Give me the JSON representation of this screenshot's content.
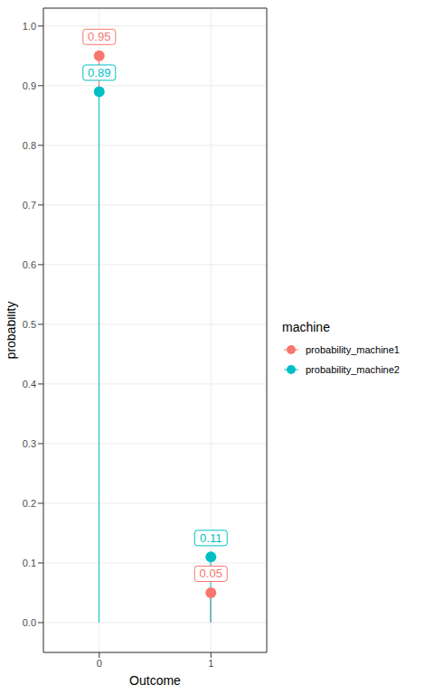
{
  "chart_data": {
    "type": "lollipop",
    "x_label": "Outcome",
    "y_label": "probability",
    "legend_title": "machine",
    "categories": [
      "0",
      "1"
    ],
    "series": [
      {
        "name": "probability_machine1",
        "color": "#f8766d",
        "values": [
          0.95,
          0.05
        ]
      },
      {
        "name": "probability_machine2",
        "color": "#00bfc4",
        "values": [
          0.89,
          0.11
        ]
      }
    ],
    "ylim": [
      -0.05,
      1.03
    ],
    "yticks": [
      {
        "value": 0,
        "label": "0.0"
      },
      {
        "value": 0.1,
        "label": "0.1"
      },
      {
        "value": 0.2,
        "label": "0.2"
      },
      {
        "value": 0.3,
        "label": "0.3"
      },
      {
        "value": 0.4,
        "label": "0.4"
      },
      {
        "value": 0.5,
        "label": "0.5"
      },
      {
        "value": 0.6,
        "label": "0.6"
      },
      {
        "value": 0.7,
        "label": "0.7"
      },
      {
        "value": 0.8,
        "label": "0.8"
      },
      {
        "value": 0.9,
        "label": "0.9"
      },
      {
        "value": 1,
        "label": "1.0"
      }
    ],
    "grid": true,
    "data_labels": true,
    "legend": "right",
    "marker": "circle"
  }
}
